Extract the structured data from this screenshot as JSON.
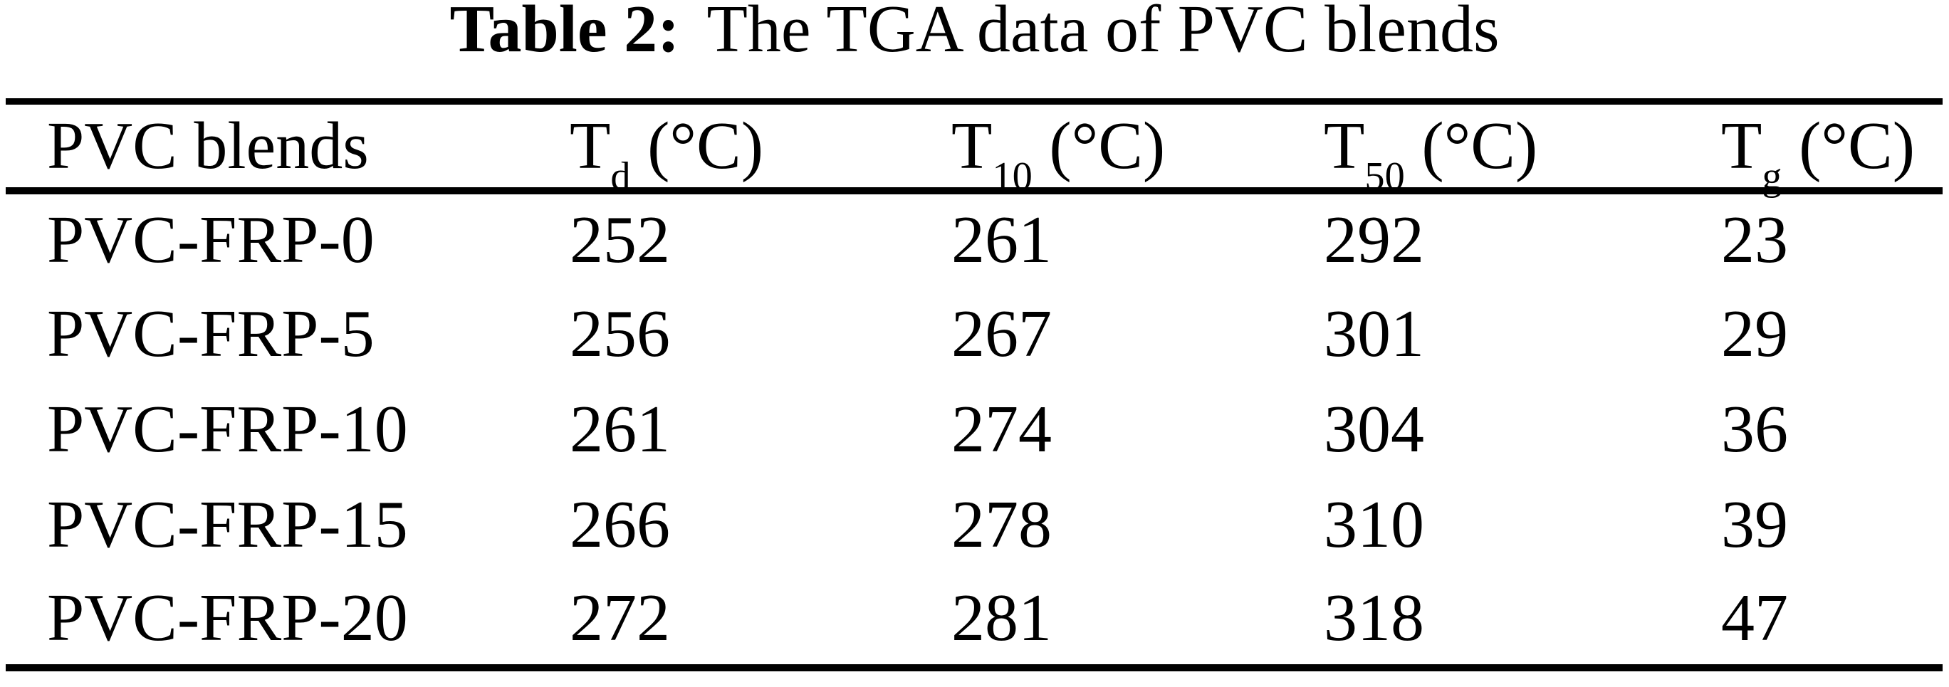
{
  "page": {
    "background": "#ffffff",
    "ink_color": "#000000"
  },
  "title": {
    "label": "Table 2:",
    "text": "The TGA data of PVC blends"
  },
  "table": {
    "columns": [
      {
        "base": "PVC blends",
        "sub": "",
        "unit": ""
      },
      {
        "base": "T",
        "sub": "d",
        "unit": " (°C)"
      },
      {
        "base": "T",
        "sub": "10",
        "unit": " (°C)"
      },
      {
        "base": "T",
        "sub": "50",
        "unit": " (°C)"
      },
      {
        "base": "T",
        "sub": "g",
        "unit": " (°C)"
      }
    ],
    "rows": [
      {
        "blend": "PVC-FRP-0",
        "td": "252",
        "t10": "261",
        "t50": "292",
        "tg": "23"
      },
      {
        "blend": "PVC-FRP-5",
        "td": "256",
        "t10": "267",
        "t50": "301",
        "tg": "29"
      },
      {
        "blend": "PVC-FRP-10",
        "td": "261",
        "t10": "274",
        "t50": "304",
        "tg": "36"
      },
      {
        "blend": "PVC-FRP-15",
        "td": "266",
        "t10": "278",
        "t50": "310",
        "tg": "39"
      },
      {
        "blend": "PVC-FRP-20",
        "td": "272",
        "t10": "281",
        "t50": "318",
        "tg": "47"
      }
    ]
  }
}
